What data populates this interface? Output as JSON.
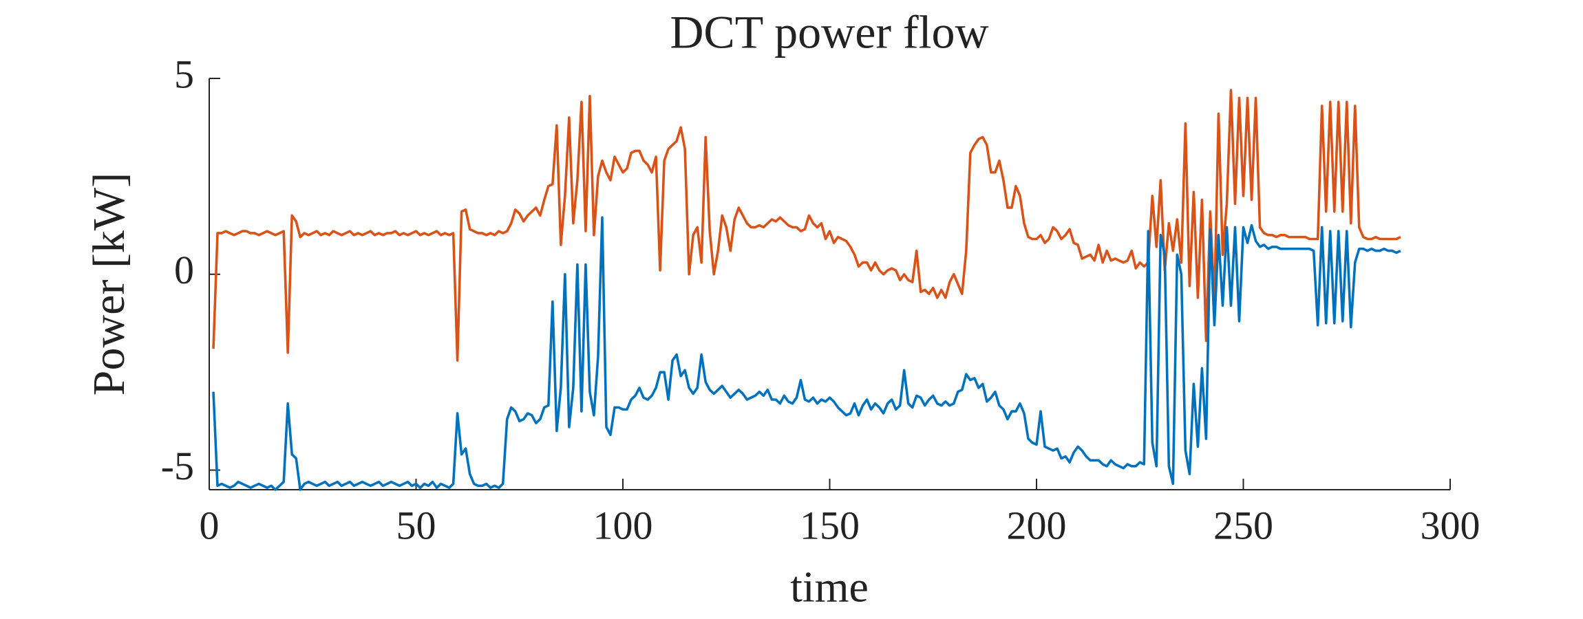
{
  "chart_data": {
    "type": "line",
    "title": "DCT power flow",
    "xlabel": "time",
    "ylabel": "Power [kW]",
    "xlim": [
      0,
      300
    ],
    "xticks": [
      0,
      50,
      100,
      150,
      200,
      250,
      300
    ],
    "ylim": [
      -5.5,
      5
    ],
    "yticks": [
      -5,
      0,
      5
    ],
    "x": [
      1,
      2,
      3,
      4,
      5,
      6,
      7,
      8,
      9,
      10,
      11,
      12,
      13,
      14,
      15,
      16,
      17,
      18,
      19,
      20,
      21,
      22,
      23,
      24,
      25,
      26,
      27,
      28,
      29,
      30,
      31,
      32,
      33,
      34,
      35,
      36,
      37,
      38,
      39,
      40,
      41,
      42,
      43,
      44,
      45,
      46,
      47,
      48,
      49,
      50,
      51,
      52,
      53,
      54,
      55,
      56,
      57,
      58,
      59,
      60,
      61,
      62,
      63,
      64,
      65,
      66,
      67,
      68,
      69,
      70,
      71,
      72,
      73,
      74,
      75,
      76,
      77,
      78,
      79,
      80,
      81,
      82,
      83,
      84,
      85,
      86,
      87,
      88,
      89,
      90,
      91,
      92,
      93,
      94,
      95,
      96,
      97,
      98,
      99,
      100,
      101,
      102,
      103,
      104,
      105,
      106,
      107,
      108,
      109,
      110,
      111,
      112,
      113,
      114,
      115,
      116,
      117,
      118,
      119,
      120,
      121,
      122,
      123,
      124,
      125,
      126,
      127,
      128,
      129,
      130,
      131,
      132,
      133,
      134,
      135,
      136,
      137,
      138,
      139,
      140,
      141,
      142,
      143,
      144,
      145,
      146,
      147,
      148,
      149,
      150,
      151,
      152,
      153,
      154,
      155,
      156,
      157,
      158,
      159,
      160,
      161,
      162,
      163,
      164,
      165,
      166,
      167,
      168,
      169,
      170,
      171,
      172,
      173,
      174,
      175,
      176,
      177,
      178,
      179,
      180,
      181,
      182,
      183,
      184,
      185,
      186,
      187,
      188,
      189,
      190,
      191,
      192,
      193,
      194,
      195,
      196,
      197,
      198,
      199,
      200,
      201,
      202,
      203,
      204,
      205,
      206,
      207,
      208,
      209,
      210,
      211,
      212,
      213,
      214,
      215,
      216,
      217,
      218,
      219,
      220,
      221,
      222,
      223,
      224,
      225,
      226,
      227,
      228,
      229,
      230,
      231,
      232,
      233,
      234,
      235,
      236,
      237,
      238,
      239,
      240,
      241,
      242,
      243,
      244,
      245,
      246,
      247,
      248,
      249,
      250,
      251,
      252,
      253,
      254,
      255,
      256,
      257,
      258,
      259,
      260,
      261,
      262,
      263,
      264,
      265,
      266,
      267,
      268,
      269,
      270,
      271,
      272,
      273,
      274,
      275,
      276,
      277,
      278,
      279,
      280,
      281,
      282,
      283,
      284,
      285,
      286,
      287,
      288
    ],
    "series": [
      {
        "color": "#D95319",
        "values": [
          -1.9,
          1.05,
          1.05,
          1.1,
          1.05,
          1.0,
          1.05,
          1.1,
          1.1,
          1.05,
          1.05,
          1.0,
          1.05,
          1.1,
          1.05,
          1.0,
          1.05,
          1.1,
          -2.0,
          1.5,
          1.35,
          0.95,
          1.05,
          1.0,
          1.05,
          1.1,
          1.0,
          1.05,
          1.0,
          1.1,
          1.05,
          1.0,
          1.05,
          1.1,
          1.0,
          1.05,
          1.0,
          1.05,
          1.1,
          1.0,
          1.05,
          1.0,
          1.05,
          1.05,
          1.1,
          1.0,
          1.05,
          1.0,
          1.05,
          1.1,
          1.0,
          1.05,
          1.0,
          1.05,
          1.1,
          1.0,
          1.05,
          1.0,
          1.05,
          -2.2,
          1.6,
          1.65,
          1.15,
          1.1,
          1.05,
          1.05,
          1.0,
          1.05,
          1.0,
          1.1,
          1.05,
          1.1,
          1.3,
          1.65,
          1.55,
          1.35,
          1.5,
          1.6,
          1.7,
          1.5,
          1.9,
          2.25,
          2.3,
          3.8,
          0.75,
          2.0,
          4.0,
          1.3,
          2.4,
          4.4,
          1.1,
          4.55,
          1.0,
          2.5,
          2.9,
          2.6,
          2.4,
          3.0,
          2.8,
          2.6,
          2.7,
          3.1,
          3.15,
          3.15,
          2.9,
          2.8,
          2.6,
          3.0,
          0.1,
          2.9,
          3.2,
          3.3,
          3.4,
          3.75,
          3.2,
          0.0,
          1.0,
          1.2,
          0.3,
          3.5,
          1.1,
          0.0,
          0.6,
          1.5,
          1.2,
          0.6,
          1.4,
          1.7,
          1.5,
          1.3,
          1.2,
          1.2,
          1.25,
          1.2,
          1.3,
          1.4,
          1.35,
          1.45,
          1.35,
          1.25,
          1.2,
          1.2,
          1.1,
          1.15,
          1.5,
          1.3,
          1.2,
          1.3,
          0.9,
          1.1,
          0.8,
          0.95,
          0.9,
          0.85,
          0.7,
          0.5,
          0.2,
          0.3,
          0.3,
          0.1,
          0.3,
          0.1,
          0.0,
          0.1,
          0.15,
          0.1,
          -0.15,
          0.0,
          -0.15,
          -0.2,
          0.6,
          -0.45,
          -0.4,
          -0.5,
          -0.35,
          -0.6,
          -0.4,
          -0.6,
          -0.2,
          0.0,
          -0.25,
          -0.5,
          0.6,
          3.1,
          3.3,
          3.45,
          3.5,
          3.3,
          2.6,
          2.6,
          2.9,
          2.4,
          1.7,
          1.7,
          2.25,
          2.0,
          1.3,
          0.95,
          0.9,
          0.9,
          1.0,
          0.8,
          0.9,
          1.2,
          1.1,
          0.9,
          1.0,
          1.15,
          0.8,
          0.75,
          0.4,
          0.45,
          0.5,
          0.35,
          0.75,
          0.3,
          0.6,
          0.35,
          0.4,
          0.35,
          0.3,
          0.35,
          0.6,
          0.15,
          0.3,
          0.2,
          0.3,
          2.0,
          0.7,
          2.4,
          0.1,
          1.3,
          0.6,
          1.4,
          0.3,
          3.85,
          -0.3,
          2.1,
          -0.6,
          1.9,
          -1.7,
          1.6,
          -0.8,
          4.1,
          0.5,
          1.8,
          4.7,
          1.8,
          4.5,
          2.0,
          4.5,
          1.9,
          4.5,
          1.2,
          1.05,
          1.0,
          1.0,
          0.95,
          1.0,
          1.0,
          0.95,
          0.95,
          0.95,
          0.95,
          0.95,
          0.9,
          0.9,
          0.9,
          4.3,
          1.6,
          4.4,
          1.6,
          4.4,
          1.6,
          4.4,
          1.3,
          4.3,
          1.2,
          0.95,
          0.9,
          0.9,
          0.95,
          0.9,
          0.9,
          0.9,
          0.9,
          0.9,
          0.95
        ]
      },
      {
        "color": "#0072BD",
        "values": [
          -3.0,
          -5.4,
          -5.35,
          -5.4,
          -5.45,
          -5.4,
          -5.3,
          -5.35,
          -5.4,
          -5.45,
          -5.4,
          -5.35,
          -5.4,
          -5.45,
          -5.4,
          -5.5,
          -5.4,
          -5.3,
          -3.3,
          -4.6,
          -4.7,
          -5.5,
          -5.35,
          -5.3,
          -5.35,
          -5.4,
          -5.35,
          -5.3,
          -5.4,
          -5.35,
          -5.3,
          -5.4,
          -5.35,
          -5.3,
          -5.4,
          -5.35,
          -5.3,
          -5.35,
          -5.4,
          -5.35,
          -5.3,
          -5.4,
          -5.35,
          -5.3,
          -5.35,
          -5.4,
          -5.35,
          -5.3,
          -5.4,
          -5.35,
          -5.45,
          -5.35,
          -5.4,
          -5.3,
          -5.45,
          -5.35,
          -5.4,
          -5.45,
          -5.35,
          -3.55,
          -4.6,
          -4.45,
          -5.1,
          -5.35,
          -5.4,
          -5.4,
          -5.35,
          -5.45,
          -5.4,
          -5.45,
          -5.35,
          -3.7,
          -3.4,
          -3.5,
          -3.75,
          -3.7,
          -3.55,
          -3.6,
          -3.8,
          -3.7,
          -3.4,
          -3.35,
          -0.7,
          -4.0,
          -2.9,
          0.0,
          -3.9,
          -2.9,
          0.25,
          -3.5,
          0.25,
          -3.0,
          -3.6,
          -2.1,
          1.45,
          -3.9,
          -4.1,
          -3.4,
          -3.4,
          -3.45,
          -3.45,
          -3.2,
          -3.1,
          -2.9,
          -3.15,
          -3.2,
          -3.1,
          -2.9,
          -2.5,
          -2.5,
          -3.2,
          -2.2,
          -2.05,
          -2.6,
          -2.45,
          -2.9,
          -3.05,
          -2.9,
          -2.05,
          -2.75,
          -2.95,
          -3.05,
          -2.95,
          -2.85,
          -3.0,
          -3.15,
          -3.05,
          -2.95,
          -3.05,
          -3.2,
          -3.15,
          -3.1,
          -3.0,
          -3.1,
          -2.95,
          -3.2,
          -3.2,
          -3.3,
          -3.1,
          -3.25,
          -3.3,
          -3.15,
          -2.7,
          -3.2,
          -3.25,
          -3.15,
          -3.3,
          -3.2,
          -3.25,
          -3.15,
          -3.25,
          -3.4,
          -3.5,
          -3.6,
          -3.55,
          -3.3,
          -3.6,
          -3.35,
          -3.2,
          -3.45,
          -3.3,
          -3.4,
          -3.55,
          -3.3,
          -3.2,
          -3.45,
          -3.35,
          -2.45,
          -3.3,
          -3.4,
          -3.1,
          -3.15,
          -3.35,
          -3.2,
          -3.1,
          -3.3,
          -3.35,
          -3.25,
          -3.35,
          -3.3,
          -3.0,
          -2.95,
          -2.55,
          -2.7,
          -2.65,
          -2.9,
          -2.8,
          -3.25,
          -3.15,
          -3.0,
          -3.35,
          -3.45,
          -3.7,
          -3.5,
          -3.5,
          -3.3,
          -3.55,
          -4.2,
          -4.3,
          -4.35,
          -3.5,
          -4.4,
          -4.45,
          -4.5,
          -4.45,
          -4.7,
          -4.65,
          -4.8,
          -4.55,
          -4.4,
          -4.5,
          -4.65,
          -4.75,
          -4.75,
          -4.75,
          -4.85,
          -4.9,
          -4.75,
          -4.85,
          -4.9,
          -4.95,
          -4.85,
          -4.9,
          -4.9,
          -4.8,
          -4.85,
          1.1,
          -4.3,
          -4.9,
          1.0,
          0.5,
          -4.9,
          -5.35,
          0.5,
          0.0,
          -4.5,
          -5.1,
          -2.8,
          -4.4,
          -2.4,
          -4.2,
          1.15,
          -1.3,
          1.0,
          -0.8,
          1.2,
          -0.8,
          1.2,
          -1.2,
          1.2,
          0.8,
          1.25,
          0.85,
          0.7,
          0.75,
          0.65,
          0.7,
          0.7,
          0.65,
          0.65,
          0.65,
          0.65,
          0.65,
          0.65,
          0.65,
          0.65,
          0.6,
          -1.3,
          1.2,
          -1.25,
          1.1,
          -1.25,
          1.1,
          -1.2,
          1.1,
          -1.35,
          0.3,
          0.65,
          0.65,
          0.6,
          0.65,
          0.6,
          0.6,
          0.65,
          0.6,
          0.6,
          0.55,
          0.6
        ]
      }
    ]
  }
}
